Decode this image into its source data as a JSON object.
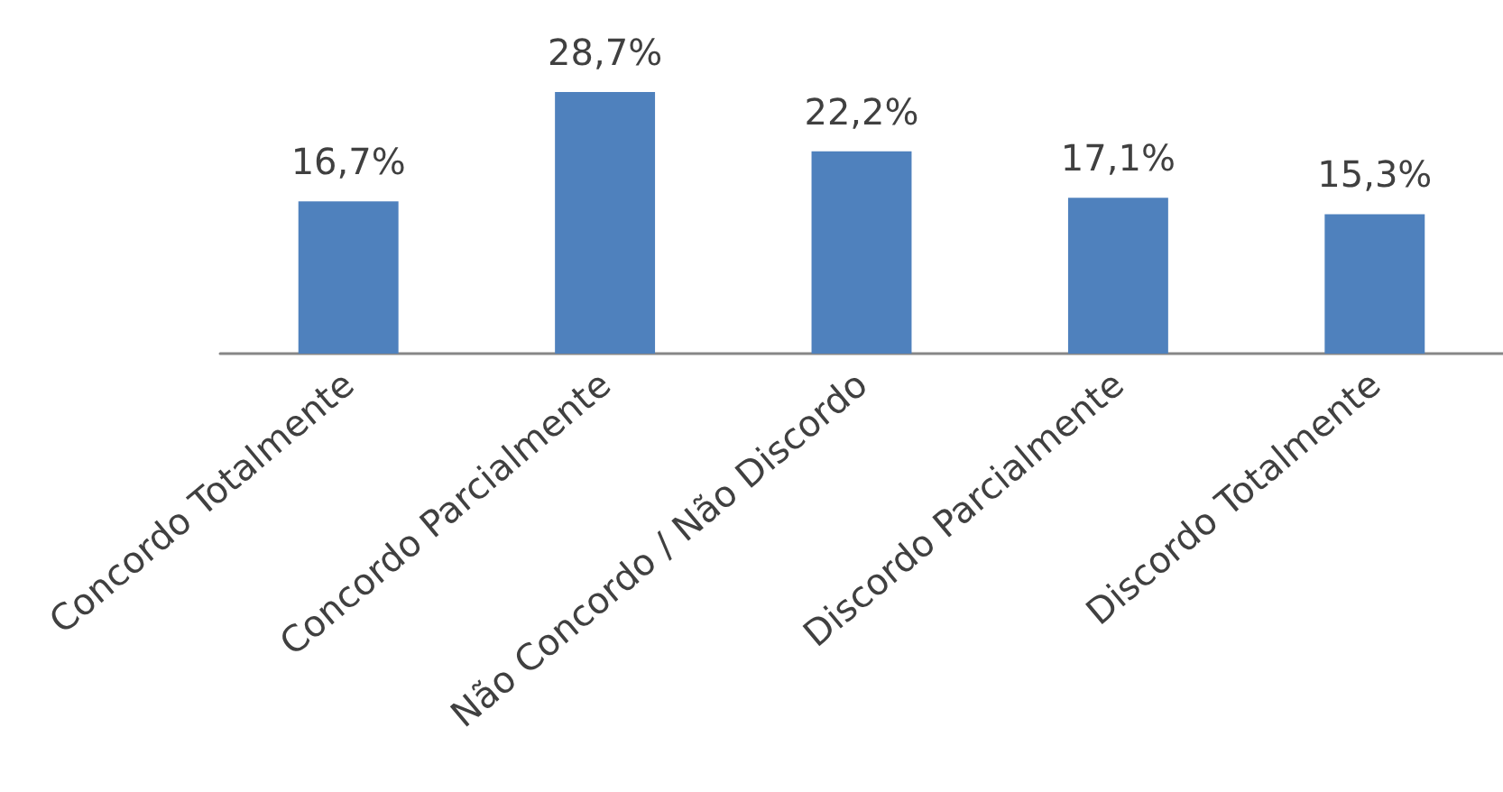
{
  "chart_data": {
    "type": "bar",
    "categories": [
      "Concordo Totalmente",
      "Concordo Parcialmente",
      "Não Concordo / Não Discordo",
      "Discordo Parcialmente",
      "Discordo Totalmente"
    ],
    "values": [
      16.7,
      28.7,
      22.2,
      17.1,
      15.3
    ],
    "value_labels": [
      "16,7%",
      "28,7%",
      "22,2%",
      "17,1%",
      "15,3%"
    ],
    "color": "#4f81bd"
  }
}
